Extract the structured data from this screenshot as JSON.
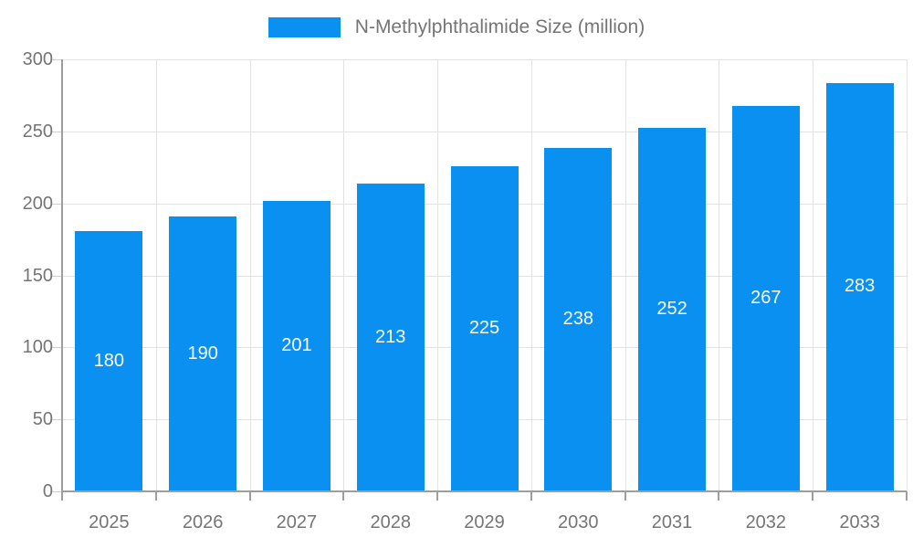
{
  "legend": {
    "label": "N-Methylphthalimide Size (million)"
  },
  "colors": {
    "bar": "#0a90f0",
    "grid": "#e3e3e3",
    "axis": "#9e9e9e",
    "tick_text": "#757575",
    "value_label": "#ffffff"
  },
  "chart_data": {
    "type": "bar",
    "title": "",
    "xlabel": "",
    "ylabel": "",
    "categories": [
      "2025",
      "2026",
      "2027",
      "2028",
      "2029",
      "2030",
      "2031",
      "2032",
      "2033"
    ],
    "series": [
      {
        "name": "N-Methylphthalimide Size (million)",
        "values": [
          180,
          190,
          201,
          213,
          225,
          238,
          252,
          267,
          283
        ]
      }
    ],
    "ylim": [
      0,
      300
    ],
    "yticks": [
      0,
      50,
      100,
      150,
      200,
      250,
      300
    ],
    "grid": true,
    "legend_position": "top",
    "value_labels": "inside-center"
  }
}
